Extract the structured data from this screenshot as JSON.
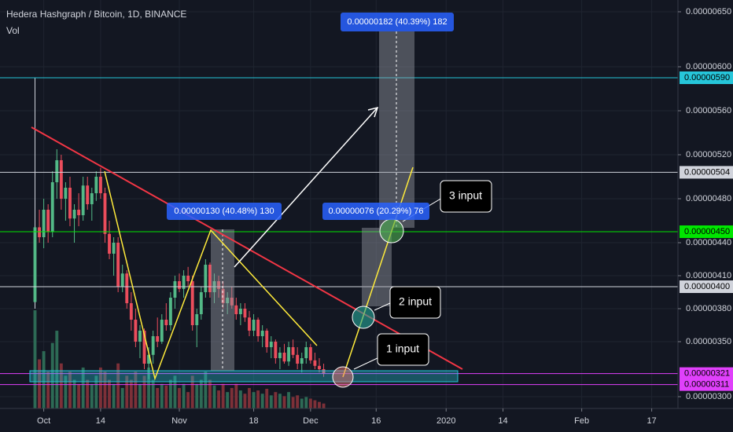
{
  "chart_data": {
    "type": "candlestick",
    "title": "Hedera Hashgraph / Bitcoin, 1D, BINANCE",
    "volume_label": "Vol",
    "up_color": "#53b987",
    "down_color": "#eb4d5c",
    "volume_up_color": "#2d6a55",
    "volume_down_color": "#7d3038",
    "x": [
      "2019-09-29",
      "2019-09-30",
      "2019-10-01",
      "2019-10-02",
      "2019-10-03",
      "2019-10-04",
      "2019-10-05",
      "2019-10-06",
      "2019-10-07",
      "2019-10-08",
      "2019-10-09",
      "2019-10-10",
      "2019-10-11",
      "2019-10-12",
      "2019-10-13",
      "2019-10-14",
      "2019-10-15",
      "2019-10-16",
      "2019-10-17",
      "2019-10-18",
      "2019-10-19",
      "2019-10-20",
      "2019-10-21",
      "2019-10-22",
      "2019-10-23",
      "2019-10-24",
      "2019-10-25",
      "2019-10-26",
      "2019-10-27",
      "2019-10-28",
      "2019-10-29",
      "2019-10-30",
      "2019-10-31",
      "2019-11-01",
      "2019-11-02",
      "2019-11-03",
      "2019-11-04",
      "2019-11-05",
      "2019-11-06",
      "2019-11-07",
      "2019-11-08",
      "2019-11-09",
      "2019-11-10",
      "2019-11-11",
      "2019-11-12",
      "2019-11-13",
      "2019-11-14",
      "2019-11-15",
      "2019-11-16",
      "2019-11-17",
      "2019-11-18",
      "2019-11-19",
      "2019-11-20",
      "2019-11-21",
      "2019-11-22",
      "2019-11-23",
      "2019-11-24",
      "2019-11-25",
      "2019-11-26",
      "2019-11-27",
      "2019-11-28",
      "2019-11-29",
      "2019-11-30",
      "2019-12-01",
      "2019-12-02",
      "2019-12-03",
      "2019-12-04"
    ],
    "ohlc": [
      [
        3.86e-06,
        5.9e-06,
        3.8e-06,
        4.54e-06
      ],
      [
        4.54e-06,
        4.7e-06,
        4.4e-06,
        4.45e-06
      ],
      [
        4.45e-06,
        4.8e-06,
        4.35e-06,
        4.7e-06
      ],
      [
        4.7e-06,
        4.75e-06,
        4.4e-06,
        4.5e-06
      ],
      [
        4.5e-06,
        5.05e-06,
        4.45e-06,
        4.95e-06
      ],
      [
        4.95e-06,
        5.25e-06,
        4.8e-06,
        5.15e-06
      ],
      [
        5.15e-06,
        5.2e-06,
        4.7e-06,
        4.8e-06
      ],
      [
        4.8e-06,
        4.95e-06,
        4.6e-06,
        4.9e-06
      ],
      [
        4.9e-06,
        5e-06,
        4.55e-06,
        4.62e-06
      ],
      [
        4.62e-06,
        4.75e-06,
        4.4e-06,
        4.7e-06
      ],
      [
        4.7e-06,
        4.85e-06,
        4.55e-06,
        4.65e-06
      ],
      [
        4.65e-06,
        5e-06,
        4.6e-06,
        4.92e-06
      ],
      [
        4.92e-06,
        5e-06,
        4.7e-06,
        4.75e-06
      ],
      [
        4.75e-06,
        4.9e-06,
        4.6e-06,
        4.85e-06
      ],
      [
        4.85e-06,
        5.05e-06,
        4.78e-06,
        5e-06
      ],
      [
        5e-06,
        5.08e-06,
        4.8e-06,
        4.85e-06
      ],
      [
        4.85e-06,
        4.9e-06,
        4.4e-06,
        4.48e-06
      ],
      [
        4.48e-06,
        4.6e-06,
        4.25e-06,
        4.3e-06
      ],
      [
        4.3e-06,
        4.45e-06,
        4.1e-06,
        4.4e-06
      ],
      [
        4.4e-06,
        4.45e-06,
        3.95e-06,
        4e-06
      ],
      [
        4e-06,
        4.2e-06,
        3.95e-06,
        4.12e-06
      ],
      [
        4.12e-06,
        4.15e-06,
        3.8e-06,
        3.85e-06
      ],
      [
        3.85e-06,
        3.95e-06,
        3.6e-06,
        3.7e-06
      ],
      [
        3.7e-06,
        3.8e-06,
        3.45e-06,
        3.5e-06
      ],
      [
        3.5e-06,
        3.65e-06,
        3.35e-06,
        3.6e-06
      ],
      [
        3.6e-06,
        3.62e-06,
        3.25e-06,
        3.3e-06
      ],
      [
        3.3e-06,
        3.45e-06,
        3.16e-06,
        3.38e-06
      ],
      [
        3.38e-06,
        3.6e-06,
        3.3e-06,
        3.55e-06
      ],
      [
        3.55e-06,
        3.72e-06,
        3.45e-06,
        3.5e-06
      ],
      [
        3.5e-06,
        3.75e-06,
        3.48e-06,
        3.7e-06
      ],
      [
        3.7e-06,
        3.85e-06,
        3.6e-06,
        3.65e-06
      ],
      [
        3.65e-06,
        3.95e-06,
        3.6e-06,
        3.9e-06
      ],
      [
        3.9e-06,
        4.1e-06,
        3.8e-06,
        4.05e-06
      ],
      [
        4.05e-06,
        4.12e-06,
        3.95e-06,
        3.98e-06
      ],
      [
        3.98e-06,
        4.15e-06,
        3.9e-06,
        4.1e-06
      ],
      [
        4.1e-06,
        4.18e-06,
        4e-06,
        4.05e-06
      ],
      [
        4.05e-06,
        4.1e-06,
        3.6e-06,
        3.65e-06
      ],
      [
        3.65e-06,
        3.8e-06,
        3.45e-06,
        3.75e-06
      ],
      [
        3.75e-06,
        4e-06,
        3.7e-06,
        3.95e-06
      ],
      [
        3.95e-06,
        4.25e-06,
        3.9e-06,
        4.2e-06
      ],
      [
        4.2e-06,
        4.22e-06,
        3.9e-06,
        3.95e-06
      ],
      [
        3.95e-06,
        4.12e-06,
        3.85e-06,
        4.05e-06
      ],
      [
        4.05e-06,
        4.1e-06,
        3.9e-06,
        3.98e-06
      ],
      [
        3.98e-06,
        4.05e-06,
        3.8e-06,
        3.85e-06
      ],
      [
        3.85e-06,
        3.95e-06,
        3.75e-06,
        3.9e-06
      ],
      [
        3.9e-06,
        4e-06,
        3.8e-06,
        3.83e-06
      ],
      [
        3.83e-06,
        3.9e-06,
        3.7e-06,
        3.75e-06
      ],
      [
        3.75e-06,
        3.85e-06,
        3.65e-06,
        3.8e-06
      ],
      [
        3.8e-06,
        3.85e-06,
        3.68e-06,
        3.72e-06
      ],
      [
        3.72e-06,
        3.78e-06,
        3.55e-06,
        3.6e-06
      ],
      [
        3.6e-06,
        3.75e-06,
        3.55e-06,
        3.7e-06
      ],
      [
        3.7e-06,
        3.72e-06,
        3.5e-06,
        3.55e-06
      ],
      [
        3.55e-06,
        3.65e-06,
        3.45e-06,
        3.6e-06
      ],
      [
        3.6e-06,
        3.62e-06,
        3.4e-06,
        3.45e-06
      ],
      [
        3.45e-06,
        3.55e-06,
        3.35e-06,
        3.5e-06
      ],
      [
        3.5e-06,
        3.52e-06,
        3.3e-06,
        3.35e-06
      ],
      [
        3.35e-06,
        3.45e-06,
        3.25e-06,
        3.4e-06
      ],
      [
        3.4e-06,
        3.48e-06,
        3.3e-06,
        3.32e-06
      ],
      [
        3.32e-06,
        3.5e-06,
        3.28e-06,
        3.45e-06
      ],
      [
        3.45e-06,
        3.52e-06,
        3.35e-06,
        3.38e-06
      ],
      [
        3.38e-06,
        3.45e-06,
        3.25e-06,
        3.3e-06
      ],
      [
        3.3e-06,
        3.4e-06,
        3.22e-06,
        3.35e-06
      ],
      [
        3.35e-06,
        3.5e-06,
        3.3e-06,
        3.45e-06
      ],
      [
        3.45e-06,
        3.48e-06,
        3.3e-06,
        3.33e-06
      ],
      [
        3.33e-06,
        3.4e-06,
        3.25e-06,
        3.28e-06
      ],
      [
        3.28e-06,
        3.35e-06,
        3.22e-06,
        3.25e-06
      ],
      [
        3.25e-06,
        3.3e-06,
        3.18e-06,
        3.21e-06
      ]
    ],
    "volume": [
      120,
      60,
      70,
      45,
      80,
      95,
      55,
      40,
      45,
      35,
      30,
      50,
      35,
      30,
      40,
      50,
      45,
      35,
      30,
      55,
      25,
      40,
      35,
      45,
      30,
      40,
      50,
      35,
      25,
      30,
      28,
      35,
      40,
      25,
      30,
      20,
      40,
      30,
      35,
      45,
      35,
      28,
      22,
      30,
      20,
      25,
      30,
      22,
      18,
      25,
      20,
      22,
      18,
      24,
      16,
      20,
      18,
      15,
      20,
      14,
      16,
      12,
      14,
      12,
      10,
      8,
      6
    ],
    "xlim": [
      "2019-09-21",
      "2020-02-23"
    ],
    "xticks": [
      {
        "value": "2019-10-01",
        "label": "Oct"
      },
      {
        "value": "2019-10-14",
        "label": "14"
      },
      {
        "value": "2019-11-01",
        "label": "Nov"
      },
      {
        "value": "2019-11-18",
        "label": "18"
      },
      {
        "value": "2019-12-01",
        "label": "Dec"
      },
      {
        "value": "2019-12-16",
        "label": "16"
      },
      {
        "value": "2020-01-01",
        "label": "2020"
      },
      {
        "value": "2020-01-14",
        "label": "14"
      },
      {
        "value": "2020-02-01",
        "label": "Feb"
      },
      {
        "value": "2020-02-17",
        "label": "17"
      }
    ],
    "ylim": [
      2.893e-06,
      6.607e-06
    ],
    "yticks": [
      {
        "value": 6.5e-06,
        "label": "0.00000650"
      },
      {
        "value": 6e-06,
        "label": "0.00000600"
      },
      {
        "value": 5.6e-06,
        "label": "0.00000560"
      },
      {
        "value": 5.2e-06,
        "label": "0.00000520"
      },
      {
        "value": 4.8e-06,
        "label": "0.00000480"
      },
      {
        "value": 4.4e-06,
        "label": "0.00000440"
      },
      {
        "value": 4.1e-06,
        "label": "0.00000410"
      },
      {
        "value": 3.8e-06,
        "label": "0.00000380"
      },
      {
        "value": 3.5e-06,
        "label": "0.00000350"
      },
      {
        "value": 3e-06,
        "label": "0.00000300"
      }
    ],
    "hlines": [
      {
        "value": 5.9e-06,
        "label": "0.00000590",
        "color": "#26c6da"
      },
      {
        "value": 5.04e-06,
        "label": "0.00000504",
        "color": "#d1d4dc"
      },
      {
        "value": 4.5e-06,
        "label": "0.00000450",
        "color": "#00e600"
      },
      {
        "value": 4e-06,
        "label": "0.00000400",
        "color": "#d1d4dc"
      },
      {
        "value": 3.21e-06,
        "label": "0.00000321",
        "color": "#e040fb"
      },
      {
        "value": 3.11e-06,
        "label": "0.00000311",
        "color": "#e040fb"
      }
    ],
    "annotations": {
      "range_top": "0.00000182 (40.39%) 182",
      "range_left": "0.00000130 (40.48%) 130",
      "range_right": "0.00000076 (20.29%) 76",
      "input1": "1 input",
      "input2": "2 input",
      "input3": "3 input"
    }
  }
}
